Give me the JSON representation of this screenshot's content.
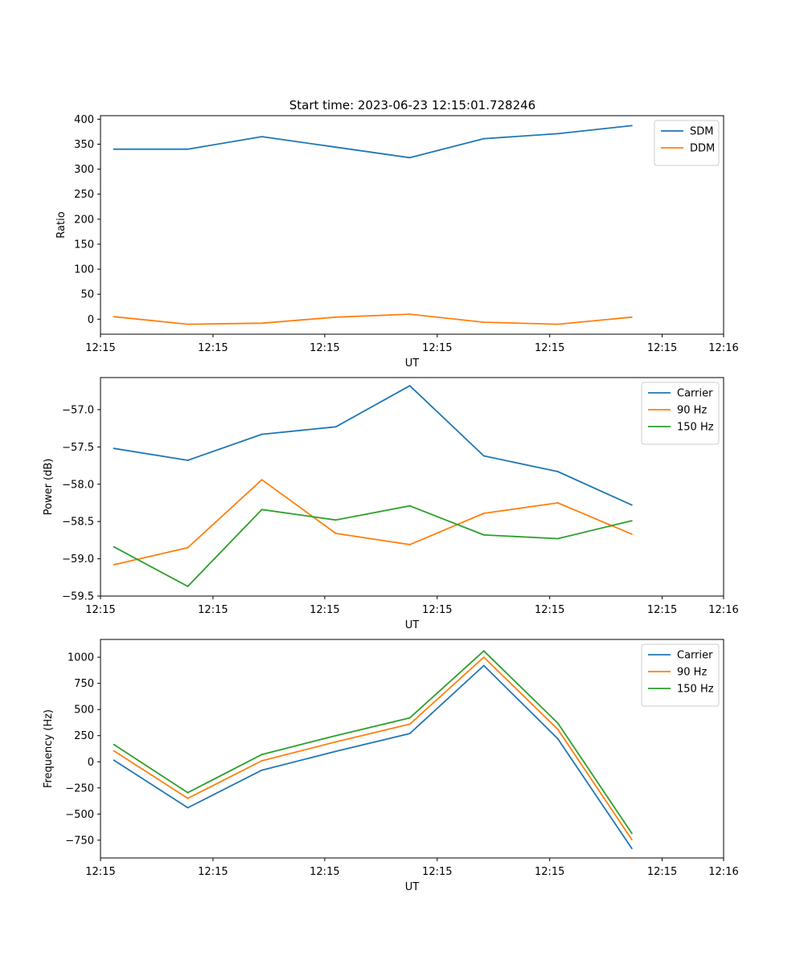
{
  "figure": {
    "title": "Start time: 2023-06-23 12:15:01.728246"
  },
  "chart_data": [
    {
      "type": "line",
      "title": "Start time: 2023-06-23 12:15:01.728246",
      "xlabel": "UT",
      "ylabel": "Ratio",
      "x": [
        1,
        2,
        3,
        4,
        5,
        6,
        7,
        8
      ],
      "xlim": [
        0.82,
        9.24
      ],
      "x_ticks": [
        0.82,
        2.34,
        3.85,
        5.37,
        6.89,
        8.41,
        9.24
      ],
      "x_tick_labels": [
        "12:15",
        "12:15",
        "12:15",
        "12:15",
        "12:15",
        "12:15",
        "12:16"
      ],
      "ylim": [
        -30,
        407
      ],
      "y_ticks": [
        0,
        50,
        100,
        150,
        200,
        250,
        300,
        350,
        400
      ],
      "y_tick_labels": [
        "0",
        "50",
        "100",
        "150",
        "200",
        "250",
        "300",
        "350",
        "400"
      ],
      "legend_position": "top-right",
      "grid": false,
      "series": [
        {
          "name": "SDM",
          "color": "#1f77b4",
          "values": [
            340,
            340,
            365,
            344,
            323,
            361,
            371,
            387
          ]
        },
        {
          "name": "DDM",
          "color": "#ff7f0e",
          "values": [
            5,
            -10,
            -8,
            4,
            10,
            -6,
            -10,
            4
          ]
        }
      ]
    },
    {
      "type": "line",
      "title": "",
      "xlabel": "UT",
      "ylabel": "Power (dB)",
      "x": [
        1,
        2,
        3,
        4,
        5,
        6,
        7,
        8
      ],
      "xlim": [
        0.82,
        9.24
      ],
      "x_ticks": [
        0.82,
        2.34,
        3.85,
        5.37,
        6.89,
        8.41,
        9.24
      ],
      "x_tick_labels": [
        "12:15",
        "12:15",
        "12:15",
        "12:15",
        "12:15",
        "12:15",
        "12:16"
      ],
      "ylim": [
        -59.5,
        -56.57
      ],
      "y_ticks": [
        -59.5,
        -59.0,
        -58.5,
        -58.0,
        -57.5,
        -57.0
      ],
      "y_tick_labels": [
        "−59.5",
        "−59.0",
        "−58.5",
        "−58.0",
        "−57.5",
        "−57.0"
      ],
      "legend_position": "top-right",
      "grid": false,
      "series": [
        {
          "name": "Carrier",
          "color": "#1f77b4",
          "values": [
            -57.52,
            -57.68,
            -57.33,
            -57.23,
            -56.68,
            -57.62,
            -57.83,
            -58.28
          ]
        },
        {
          "name": "90 Hz",
          "color": "#ff7f0e",
          "values": [
            -59.08,
            -58.85,
            -57.94,
            -58.66,
            -58.81,
            -58.39,
            -58.25,
            -58.67
          ]
        },
        {
          "name": "150 Hz",
          "color": "#2ca02c",
          "values": [
            -58.84,
            -59.37,
            -58.34,
            -58.48,
            -58.29,
            -58.68,
            -58.73,
            -58.49
          ]
        }
      ]
    },
    {
      "type": "line",
      "title": "",
      "xlabel": "UT",
      "ylabel": "Frequency (Hz)",
      "x": [
        1,
        2,
        3,
        4,
        5,
        6,
        7,
        8
      ],
      "xlim": [
        0.82,
        9.24
      ],
      "x_ticks": [
        0.82,
        2.34,
        3.85,
        5.37,
        6.89,
        8.41,
        9.24
      ],
      "x_tick_labels": [
        "12:15",
        "12:15",
        "12:15",
        "12:15",
        "12:15",
        "12:15",
        "12:16"
      ],
      "ylim": [
        -920,
        1170
      ],
      "y_ticks": [
        -750,
        -500,
        -250,
        0,
        250,
        500,
        750,
        1000
      ],
      "y_tick_labels": [
        "−750",
        "−500",
        "−250",
        "0",
        "250",
        "500",
        "750",
        "1000"
      ],
      "legend_position": "top-right",
      "grid": false,
      "series": [
        {
          "name": "Carrier",
          "color": "#1f77b4",
          "values": [
            15,
            -440,
            -80,
            100,
            270,
            920,
            220,
            -830
          ]
        },
        {
          "name": "90 Hz",
          "color": "#ff7f0e",
          "values": [
            105,
            -350,
            10,
            190,
            360,
            1000,
            310,
            -745
          ]
        },
        {
          "name": "150 Hz",
          "color": "#2ca02c",
          "values": [
            165,
            -295,
            70,
            250,
            420,
            1060,
            370,
            -685
          ]
        }
      ]
    }
  ]
}
